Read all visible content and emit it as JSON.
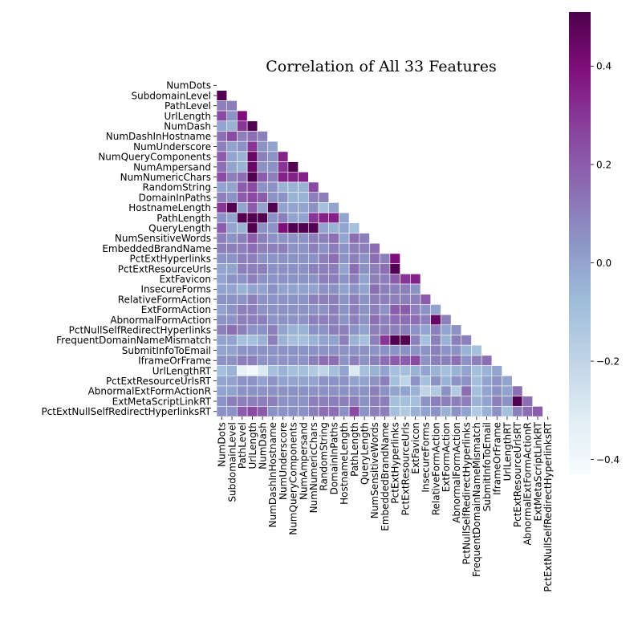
{
  "chart_data": {
    "type": "heatmap",
    "variant": "lower-triangle correlation matrix",
    "title": "Correlation of All 33 Features",
    "features": [
      "NumDots",
      "SubdomainLevel",
      "PathLevel",
      "UrlLength",
      "NumDash",
      "NumDashInHostname",
      "NumUnderscore",
      "NumQueryComponents",
      "NumAmpersand",
      "NumNumericChars",
      "RandomString",
      "DomainInPaths",
      "HostnameLength",
      "PathLength",
      "QueryLength",
      "NumSensitiveWords",
      "EmbeddedBrandName",
      "PctExtHyperlinks",
      "PctExtResourceUrls",
      "ExtFavicon",
      "InsecureForms",
      "RelativeFormAction",
      "ExtFormAction",
      "AbnormalFormAction",
      "PctNullSelfRedirectHyperlinks",
      "FrequentDomainNameMismatch",
      "SubmitInfoToEmail",
      "IframeOrFrame",
      "UrlLengthRT",
      "PctExtResourceUrlsRT",
      "AbnormalExtFormActionR",
      "ExtMetaScriptLinkRT",
      "PctExtNullSelfRedirectHyperlinksRT"
    ],
    "matrix_rows": [
      [],
      [
        0.5
      ],
      [
        0.1,
        0.1
      ],
      [
        0.25,
        0.05,
        0.4
      ],
      [
        0.0,
        -0.05,
        0.3,
        0.5
      ],
      [
        0.15,
        0.25,
        0.1,
        0.15,
        0.1
      ],
      [
        0.1,
        0.0,
        0.05,
        0.3,
        0.05,
        0.0
      ],
      [
        0.2,
        0.0,
        -0.05,
        0.45,
        0.1,
        0.05,
        0.35
      ],
      [
        0.15,
        0.0,
        -0.05,
        0.45,
        0.05,
        0.05,
        0.3,
        0.5
      ],
      [
        0.25,
        0.1,
        0.15,
        0.5,
        0.2,
        0.1,
        0.35,
        0.35,
        0.35
      ],
      [
        0.0,
        0.0,
        0.2,
        0.25,
        0.05,
        0.05,
        -0.05,
        -0.05,
        -0.05,
        0.25
      ],
      [
        0.1,
        0.05,
        0.2,
        0.25,
        0.2,
        0.05,
        0.05,
        -0.05,
        -0.05,
        0.1,
        0.1
      ],
      [
        0.3,
        0.5,
        0.0,
        0.2,
        0.0,
        0.5,
        0.0,
        0.0,
        0.0,
        0.05,
        -0.1,
        0.0
      ],
      [
        0.05,
        0.0,
        0.5,
        0.5,
        0.5,
        0.05,
        0.1,
        0.0,
        0.0,
        0.3,
        0.35,
        0.35,
        0.0
      ],
      [
        0.2,
        0.0,
        -0.05,
        0.5,
        0.05,
        0.05,
        0.4,
        0.5,
        0.5,
        0.5,
        0.0,
        -0.05,
        0.0,
        -0.1
      ],
      [
        0.1,
        0.05,
        0.1,
        0.2,
        0.1,
        0.05,
        0.05,
        0.05,
        0.05,
        0.1,
        0.1,
        0.15,
        0.0,
        0.15,
        0.1
      ],
      [
        0.1,
        0.1,
        0.1,
        0.15,
        0.1,
        0.1,
        0.1,
        0.05,
        0.05,
        0.1,
        0.05,
        0.1,
        0.05,
        0.1,
        0.1,
        0.15
      ],
      [
        0.05,
        0.05,
        0.1,
        0.1,
        0.05,
        0.05,
        0.05,
        0.05,
        0.05,
        0.05,
        0.1,
        0.15,
        0.05,
        0.1,
        0.05,
        0.15,
        0.1,
        0.4
      ],
      [
        0.0,
        0.0,
        0.1,
        0.1,
        0.1,
        0.05,
        0.05,
        0.05,
        0.05,
        0.1,
        0.1,
        0.1,
        0.0,
        0.15,
        0.05,
        0.1,
        0.15,
        0.5
      ],
      [
        0.0,
        0.05,
        0.05,
        0.1,
        0.05,
        0.05,
        0.05,
        0.05,
        0.05,
        0.05,
        0.1,
        0.1,
        0.05,
        0.1,
        0.0,
        0.1,
        0.1,
        0.2,
        0.3,
        0.35
      ],
      [
        0.0,
        0.0,
        -0.05,
        0.0,
        0.0,
        0.05,
        0.0,
        0.0,
        0.0,
        0.0,
        0.05,
        0.05,
        0.0,
        0.05,
        0.0,
        0.15,
        0.1,
        0.1,
        0.1,
        0.05
      ],
      [
        0.05,
        0.05,
        0.05,
        0.1,
        0.05,
        0.05,
        0.05,
        0.05,
        0.05,
        0.1,
        0.1,
        0.1,
        0.05,
        0.1,
        0.05,
        0.1,
        0.1,
        0.1,
        0.1,
        0.1,
        0.2
      ],
      [
        0.0,
        0.05,
        0.1,
        0.1,
        0.05,
        0.05,
        0.05,
        0.05,
        0.05,
        0.05,
        0.05,
        0.1,
        0.05,
        0.1,
        0.05,
        0.1,
        0.05,
        0.2,
        0.2,
        0.1,
        0.05,
        0.0
      ],
      [
        0.05,
        0.05,
        0.1,
        0.1,
        0.1,
        0.05,
        0.05,
        0.05,
        0.05,
        0.1,
        0.1,
        0.1,
        0.05,
        0.1,
        0.05,
        0.15,
        0.1,
        0.15,
        0.15,
        0.15,
        0.1,
        0.45,
        0.1
      ],
      [
        0.1,
        0.15,
        0.1,
        0.05,
        0.05,
        0.1,
        0.0,
        -0.05,
        -0.05,
        0.05,
        0.05,
        0.1,
        0.1,
        0.05,
        0.0,
        0.1,
        0.1,
        0.1,
        0.1,
        0.05,
        0.0,
        0.1,
        0.0,
        0.05
      ],
      [
        0.0,
        0.0,
        -0.1,
        -0.1,
        -0.05,
        0.1,
        -0.05,
        -0.1,
        -0.1,
        -0.05,
        0.0,
        0.0,
        0.1,
        -0.05,
        -0.1,
        0.1,
        0.3,
        0.5,
        0.5,
        0.1,
        -0.1,
        0.1,
        -0.05,
        0.1,
        0.1
      ],
      [
        0.0,
        0.0,
        0.05,
        0.05,
        0.05,
        0.05,
        0.05,
        0.05,
        0.05,
        0.05,
        0.05,
        0.05,
        0.05,
        0.05,
        0.05,
        0.05,
        0.05,
        0.05,
        0.05,
        0.05,
        0.05,
        0.1,
        0.05,
        0.05,
        -0.05,
        -0.1
      ],
      [
        0.05,
        0.05,
        0.1,
        0.1,
        0.05,
        0.05,
        0.05,
        0.05,
        0.05,
        0.1,
        0.15,
        0.15,
        0.05,
        0.1,
        0.05,
        0.1,
        0.15,
        0.2,
        0.2,
        0.25,
        0.05,
        0.1,
        0.1,
        0.15,
        0.05,
        0.1,
        0.15
      ],
      [
        -0.1,
        -0.05,
        -0.35,
        -0.4,
        -0.3,
        -0.1,
        -0.05,
        -0.1,
        -0.1,
        -0.15,
        -0.2,
        -0.1,
        0.0,
        -0.3,
        -0.1,
        -0.05,
        0.0,
        -0.1,
        -0.1,
        -0.05,
        0.0,
        -0.05,
        -0.1,
        -0.05,
        0.0,
        -0.1,
        -0.05,
        0.0
      ],
      [
        0.0,
        0.0,
        0.05,
        0.05,
        0.0,
        0.05,
        0.0,
        0.0,
        0.0,
        0.0,
        0.05,
        0.05,
        0.05,
        0.0,
        0.0,
        0.05,
        0.1,
        -0.1,
        -0.2,
        0.05,
        -0.1,
        0.05,
        -0.05,
        0.05,
        0.05,
        -0.1,
        0.0,
        0.05,
        0.0
      ],
      [
        0.0,
        0.0,
        0.05,
        0.05,
        0.05,
        0.05,
        0.05,
        0.05,
        0.05,
        0.05,
        0.05,
        0.05,
        0.05,
        0.05,
        0.05,
        0.1,
        0.05,
        0.0,
        0.0,
        -0.05,
        -0.2,
        -0.15,
        0.05,
        -0.15,
        0.15,
        -0.1,
        0.0,
        0.05,
        0.0,
        0.15
      ],
      [
        0.05,
        0.1,
        0.1,
        0.1,
        0.1,
        0.1,
        0.05,
        0.05,
        0.05,
        0.1,
        0.1,
        0.1,
        0.1,
        0.1,
        0.05,
        0.1,
        0.1,
        -0.1,
        -0.1,
        -0.1,
        0.05,
        0.1,
        0.1,
        0.1,
        0.1,
        -0.05,
        0.0,
        0.1,
        0.05,
        0.5,
        0.15
      ],
      [
        0.05,
        0.05,
        0.2,
        0.25,
        0.2,
        0.05,
        0.05,
        0.05,
        0.05,
        0.1,
        0.15,
        0.15,
        0.05,
        0.25,
        0.05,
        0.1,
        0.1,
        -0.1,
        -0.15,
        -0.05,
        0.0,
        0.05,
        -0.05,
        0.05,
        0.0,
        -0.15,
        -0.05,
        0.05,
        -0.1,
        0.1,
        0.15,
        0.2
      ]
    ],
    "color_scale": {
      "min": -0.43,
      "max": 0.51,
      "ticks": [
        0.4,
        0.2,
        0.0,
        -0.2,
        -0.4
      ],
      "tick_labels": [
        "0.4",
        "0.2",
        "0.0",
        "−0.2",
        "−0.4"
      ],
      "stops": [
        "#f7fcfd",
        "#e0ecf4",
        "#bfd3e6",
        "#9ebcda",
        "#8c96c6",
        "#8c6bb1",
        "#88419d",
        "#810f7c",
        "#4d004b"
      ]
    },
    "cell_border_color": "#ffffff",
    "grid": false,
    "legend": "colorbar right"
  }
}
